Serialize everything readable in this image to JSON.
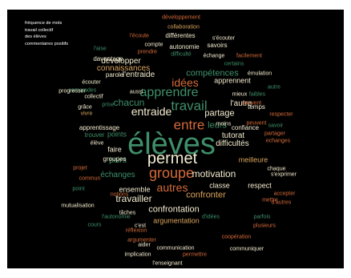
{
  "legend": {
    "lines": [
      "fréquence de mots",
      "travail collectif",
      "des élèves",
      "commentaires positifs"
    ]
  },
  "colors": {
    "background": "#000000",
    "green": "#3f8f6a",
    "orange": "#d46a3a",
    "cream": "#f4ecd0",
    "tan": "#d9a35e"
  },
  "words": [
    {
      "text": "élèves",
      "size": 38,
      "color": "green"
    },
    {
      "text": "permet",
      "size": 20,
      "color": "cream"
    },
    {
      "text": "groupe",
      "size": 18,
      "color": "orange"
    },
    {
      "text": "travail",
      "size": 17,
      "color": "green"
    },
    {
      "text": "entre",
      "size": 17,
      "color": "orange"
    },
    {
      "text": "apprendre",
      "size": 16,
      "color": "green"
    },
    {
      "text": "idées",
      "size": 14,
      "color": "orange"
    },
    {
      "text": "entraide",
      "size": 14,
      "color": "cream"
    },
    {
      "text": "autres",
      "size": 14,
      "color": "orange"
    },
    {
      "text": "chacun",
      "size": 12,
      "color": "green"
    },
    {
      "text": "travailler",
      "size": 12,
      "color": "cream"
    },
    {
      "text": "motivation",
      "size": 12,
      "color": "cream"
    },
    {
      "text": "compétences",
      "size": 11,
      "color": "green"
    },
    {
      "text": "leurs",
      "size": 11,
      "color": "green"
    },
    {
      "text": "partage",
      "size": 11,
      "color": "cream"
    },
    {
      "text": "confrontation",
      "size": 11,
      "color": "cream"
    },
    {
      "text": "confronter",
      "size": 11,
      "color": "tan"
    },
    {
      "text": "échanges",
      "size": 10,
      "color": "green"
    },
    {
      "text": "tutorat",
      "size": 10,
      "color": "cream"
    },
    {
      "text": "difficultés",
      "size": 10,
      "color": "cream"
    },
    {
      "text": "pairs",
      "size": 10,
      "color": "green"
    },
    {
      "text": "l'entraide",
      "size": 10,
      "color": "cream"
    },
    {
      "text": "l'autre",
      "size": 10,
      "color": "cream"
    },
    {
      "text": "connaissances",
      "size": 10,
      "color": "tan"
    },
    {
      "text": "développer",
      "size": 10,
      "color": "cream"
    },
    {
      "text": "apprennent",
      "size": 9,
      "color": "cream"
    },
    {
      "text": "classe",
      "size": 9,
      "color": "cream"
    },
    {
      "text": "respect",
      "size": 9,
      "color": "cream"
    },
    {
      "text": "ensemble",
      "size": 9,
      "color": "cream"
    },
    {
      "text": "argumentation",
      "size": 9,
      "color": "tan"
    },
    {
      "text": "meilleure",
      "size": 9,
      "color": "tan"
    },
    {
      "text": "faire",
      "size": 9,
      "color": "cream"
    },
    {
      "text": "points",
      "size": 9,
      "color": "green"
    },
    {
      "text": "groupes",
      "size": 8,
      "color": "cream"
    },
    {
      "text": "apprentissage",
      "size": 8,
      "color": "cream"
    },
    {
      "text": "différentes",
      "size": 8,
      "color": "cream"
    },
    {
      "text": "autonomie",
      "size": 8,
      "color": "cream"
    },
    {
      "text": "savoirs",
      "size": 8,
      "color": "cream"
    },
    {
      "text": "davantage",
      "size": 8,
      "color": "cream"
    },
    {
      "text": "parole",
      "size": 8,
      "color": "cream"
    },
    {
      "text": "trouver",
      "size": 8,
      "color": "green"
    },
    {
      "text": "temps",
      "size": 8,
      "color": "cream"
    },
    {
      "text": "confiance",
      "size": 8,
      "color": "cream"
    },
    {
      "text": "collaboration",
      "size": 7,
      "color": "tan"
    },
    {
      "text": "développement",
      "size": 7,
      "color": "orange"
    },
    {
      "text": "l'écoute",
      "size": 7,
      "color": "orange"
    },
    {
      "text": "s'écouter",
      "size": 7,
      "color": "cream"
    },
    {
      "text": "compte",
      "size": 7,
      "color": "cream"
    },
    {
      "text": "l'aise",
      "size": 7,
      "color": "green"
    },
    {
      "text": "prendre",
      "size": 7,
      "color": "orange"
    },
    {
      "text": "difficulté",
      "size": 7,
      "color": "green"
    },
    {
      "text": "échange",
      "size": 7,
      "color": "cream"
    },
    {
      "text": "facilement",
      "size": 7,
      "color": "orange"
    },
    {
      "text": "certains",
      "size": 7,
      "color": "green"
    },
    {
      "text": "émulation",
      "size": 7,
      "color": "cream"
    },
    {
      "text": "camarades",
      "size": 7,
      "color": "green"
    },
    {
      "text": "écouter",
      "size": 7,
      "color": "cream"
    },
    {
      "text": "aussi",
      "size": 7,
      "color": "cream"
    },
    {
      "text": "faibles",
      "size": 7,
      "color": "green"
    },
    {
      "text": "souvent",
      "size": 7,
      "color": "orange"
    },
    {
      "text": "autre",
      "size": 7,
      "color": "green"
    },
    {
      "text": "progresser",
      "size": 7,
      "color": "cream"
    },
    {
      "text": "collectif",
      "size": 7,
      "color": "cream"
    },
    {
      "text": "mieux",
      "size": 7,
      "color": "cream"
    },
    {
      "text": "respecter",
      "size": 7,
      "color": "orange"
    },
    {
      "text": "grâce",
      "size": 7,
      "color": "cream"
    },
    {
      "text": "prise",
      "size": 7,
      "color": "green"
    },
    {
      "text": "vivre",
      "size": 7,
      "color": "tan"
    },
    {
      "text": "moins",
      "size": 7,
      "color": "cream"
    },
    {
      "text": "peuvent",
      "size": 7,
      "color": "orange"
    },
    {
      "text": "savoir",
      "size": 7,
      "color": "green"
    },
    {
      "text": "élève",
      "size": 7,
      "color": "cream"
    },
    {
      "text": "partager",
      "size": 7,
      "color": "orange"
    },
    {
      "text": "echanges",
      "size": 7,
      "color": "orange"
    },
    {
      "text": "projet",
      "size": 7,
      "color": "orange"
    },
    {
      "text": "chaque",
      "size": 7,
      "color": "cream"
    },
    {
      "text": "s'exprimer",
      "size": 7,
      "color": "cream"
    },
    {
      "text": "commun",
      "size": 7,
      "color": "orange"
    },
    {
      "text": "accepter",
      "size": 7,
      "color": "orange"
    },
    {
      "text": "point",
      "size": 7,
      "color": "green"
    },
    {
      "text": "notions",
      "size": 7,
      "color": "orange"
    },
    {
      "text": "d'autres",
      "size": 7,
      "color": "orange"
    },
    {
      "text": "mettre",
      "size": 7,
      "color": "orange"
    },
    {
      "text": "mutualisation",
      "size": 7,
      "color": "cream"
    },
    {
      "text": "tâches",
      "size": 7,
      "color": "cream"
    },
    {
      "text": "l'autonomie",
      "size": 7,
      "color": "green"
    },
    {
      "text": "d'idées",
      "size": 7,
      "color": "green"
    },
    {
      "text": "parfois",
      "size": 7,
      "color": "green"
    },
    {
      "text": "cours",
      "size": 7,
      "color": "green"
    },
    {
      "text": "c'est",
      "size": 7,
      "color": "cream"
    },
    {
      "text": "plusieurs",
      "size": 7,
      "color": "orange"
    },
    {
      "text": "réflexion",
      "size": 7,
      "color": "orange"
    },
    {
      "text": "argumenter",
      "size": 7,
      "color": "orange"
    },
    {
      "text": "coopération",
      "size": 7,
      "color": "orange"
    },
    {
      "text": "aider",
      "size": 7,
      "color": "cream"
    },
    {
      "text": "communication",
      "size": 7,
      "color": "cream"
    },
    {
      "text": "implication",
      "size": 7,
      "color": "cream"
    },
    {
      "text": "permettre",
      "size": 7,
      "color": "orange"
    },
    {
      "text": "communiquer",
      "size": 7,
      "color": "cream"
    },
    {
      "text": "l'enseignant",
      "size": 7,
      "color": "cream"
    }
  ]
}
